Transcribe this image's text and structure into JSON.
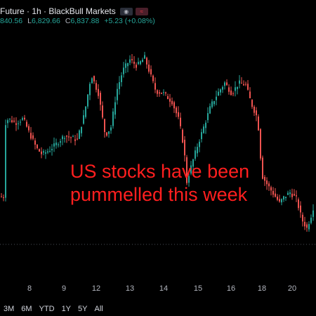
{
  "header": {
    "title": "Future · 1h · BlackBull Markets",
    "badges": [
      {
        "icon": "eye-icon",
        "glyph": "◉"
      },
      {
        "icon": "wave-icon",
        "glyph": "≈"
      }
    ],
    "ohlc": {
      "open_value": "840.56",
      "low_label": "L",
      "low_value": "6,829.66",
      "close_label": "C",
      "close_value": "6,837.88",
      "change": "+5.23 (+0.08%)"
    }
  },
  "annotation": {
    "line1": "US stocks have been",
    "line2": "pummelled this week"
  },
  "range_buttons": [
    "3M",
    "6M",
    "YTD",
    "1Y",
    "5Y",
    "All"
  ],
  "colors": {
    "up": "#26a69a",
    "down": "#ef5350",
    "background": "#000000",
    "annotation": "#ff1f1f",
    "dotted_line": "#4a4e59"
  },
  "chart_data": {
    "type": "candlestick",
    "x_ticks": [
      "8",
      "9",
      "12",
      "13",
      "14",
      "15",
      "16",
      "18",
      "20"
    ],
    "trend": [
      [
        8,
        0.55
      ],
      [
        12,
        0.57
      ],
      [
        22,
        0.55
      ],
      [
        33,
        0.57
      ],
      [
        42,
        0.5
      ],
      [
        52,
        0.43
      ],
      [
        60,
        0.4
      ],
      [
        70,
        0.42
      ],
      [
        80,
        0.45
      ],
      [
        92,
        0.49
      ],
      [
        100,
        0.48
      ],
      [
        110,
        0.47
      ],
      [
        120,
        0.59
      ],
      [
        130,
        0.78
      ],
      [
        140,
        0.69
      ],
      [
        150,
        0.49
      ],
      [
        158,
        0.53
      ],
      [
        166,
        0.7
      ],
      [
        175,
        0.8
      ],
      [
        185,
        0.85
      ],
      [
        195,
        0.82
      ],
      [
        206,
        0.86
      ],
      [
        213,
        0.79
      ],
      [
        222,
        0.7
      ],
      [
        233,
        0.69
      ],
      [
        245,
        0.65
      ],
      [
        255,
        0.56
      ],
      [
        262,
        0.43
      ],
      [
        266,
        0.27
      ],
      [
        271,
        0.33
      ],
      [
        280,
        0.43
      ],
      [
        290,
        0.53
      ],
      [
        300,
        0.63
      ],
      [
        310,
        0.69
      ],
      [
        320,
        0.74
      ],
      [
        330,
        0.69
      ],
      [
        340,
        0.74
      ],
      [
        350,
        0.73
      ],
      [
        358,
        0.64
      ],
      [
        367,
        0.57
      ],
      [
        373,
        0.3
      ],
      [
        380,
        0.26
      ],
      [
        390,
        0.21
      ],
      [
        398,
        0.17
      ],
      [
        405,
        0.2
      ],
      [
        413,
        0.22
      ],
      [
        422,
        0.19
      ],
      [
        430,
        0.09
      ],
      [
        437,
        0.05
      ],
      [
        444,
        0.12
      ],
      [
        450,
        0.2
      ]
    ]
  }
}
